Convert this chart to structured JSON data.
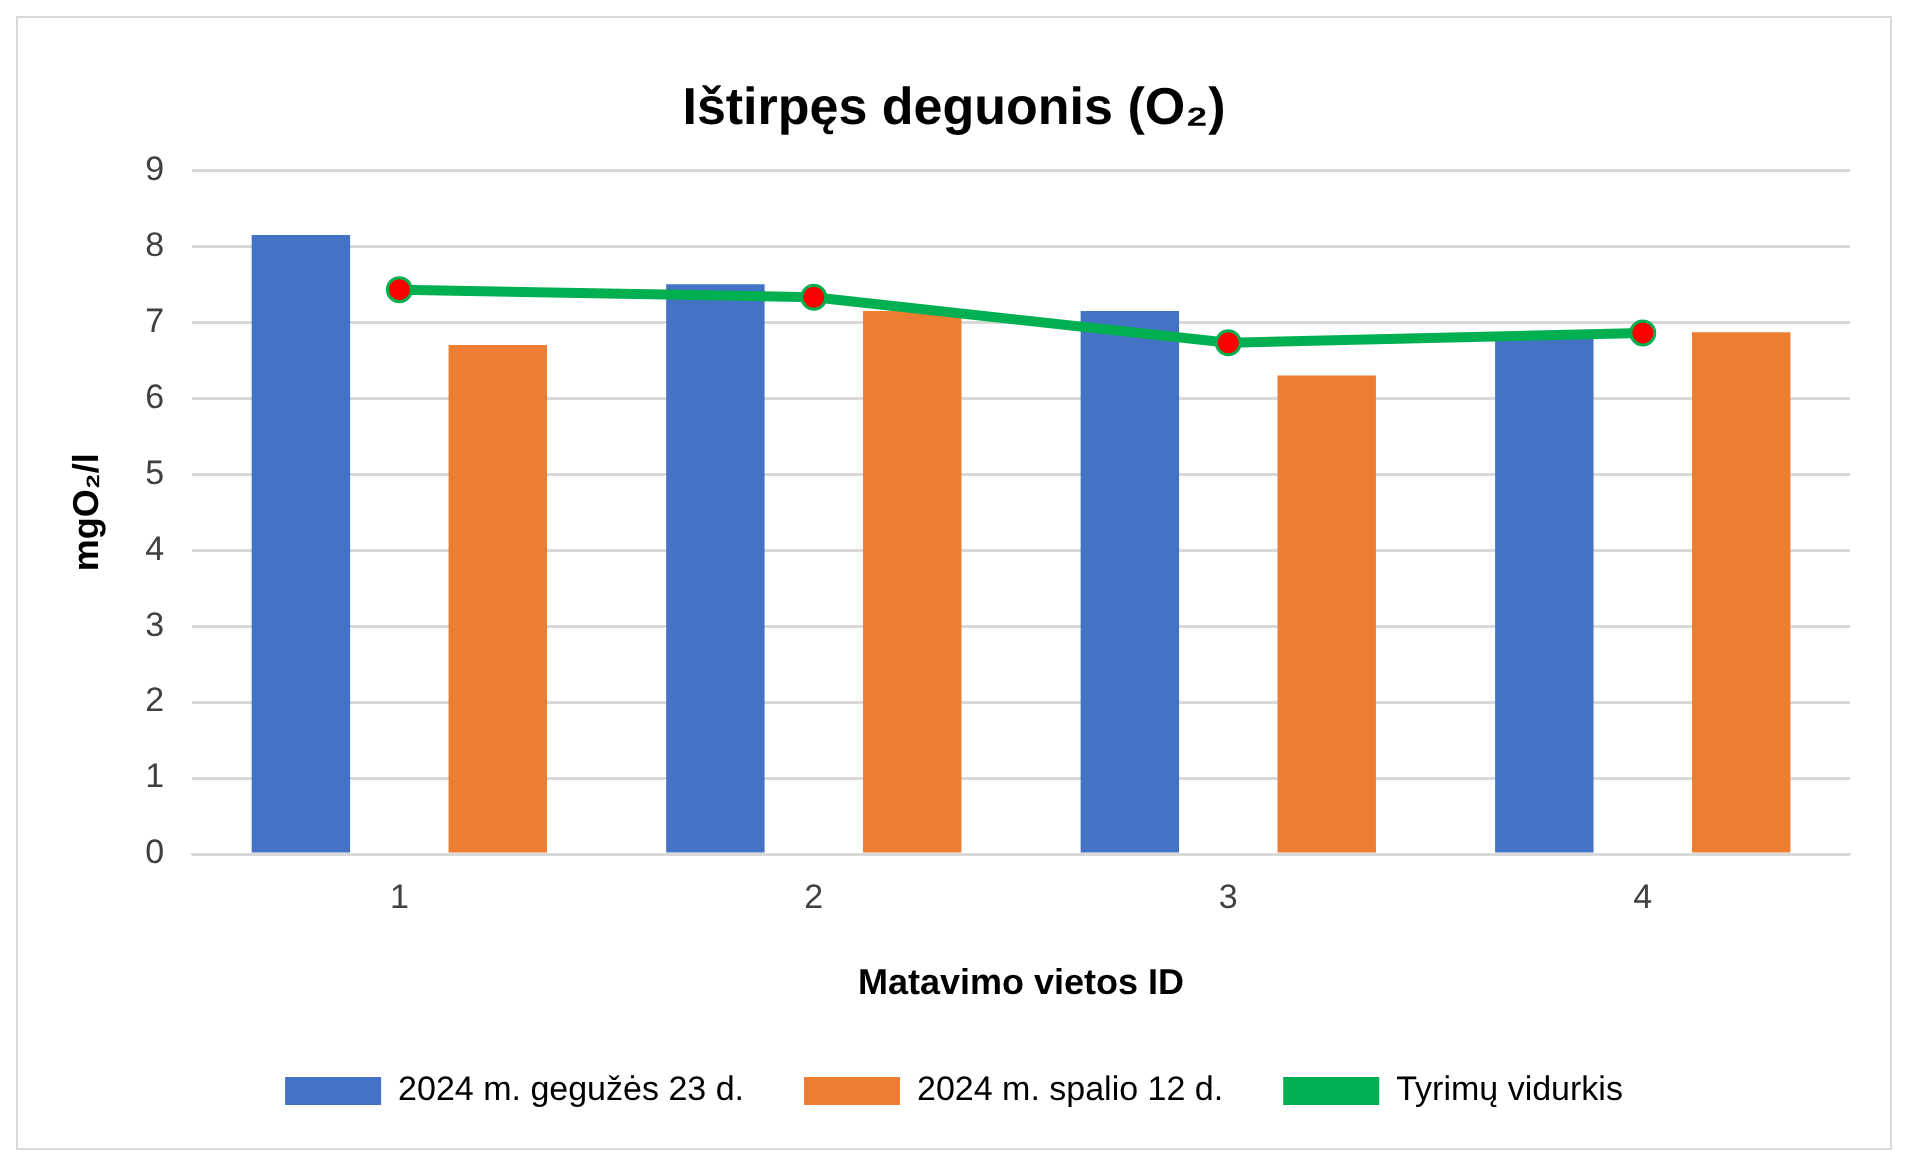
{
  "chart_data": {
    "type": "bar",
    "title": "Ištirpęs deguonis (O₂)",
    "xlabel": "Matavimo vietos ID",
    "ylabel": "mgO₂/l",
    "categories": [
      "1",
      "2",
      "3",
      "4"
    ],
    "series": [
      {
        "name": "2024 m. gegužės 23 d.",
        "color": "#4472c4",
        "values": [
          8.15,
          7.5,
          7.15,
          6.85
        ]
      },
      {
        "name": "2024 m. spalio 12 d.",
        "color": "#ed7d31",
        "values": [
          6.7,
          7.15,
          6.3,
          6.87
        ]
      },
      {
        "name": "Tyrimų vidurkis",
        "type": "line",
        "color": "#00b050",
        "values": [
          7.43,
          7.33,
          6.73,
          6.86
        ]
      }
    ],
    "ylim": [
      0,
      9
    ],
    "yticks": [
      0,
      1,
      2,
      3,
      4,
      5,
      6,
      7,
      8,
      9
    ],
    "grid": "y",
    "legend": "bottom",
    "marker": "circle",
    "line_style": "solid"
  }
}
